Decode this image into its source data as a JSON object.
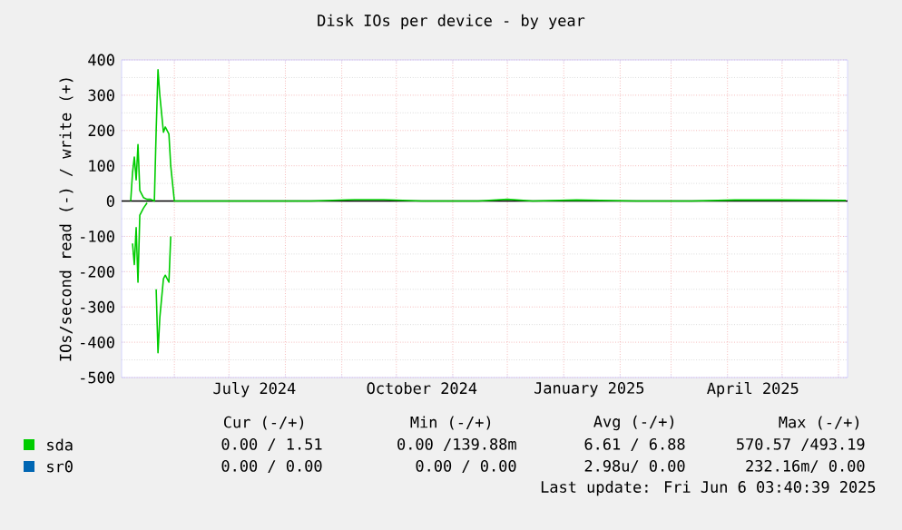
{
  "chart_data": {
    "type": "line",
    "title": "Disk IOs per device - by year",
    "ylabel": "IOs/second read (-) / write (+)",
    "x": [
      "2024-05-08",
      "2024-05-09",
      "2024-05-10",
      "2024-05-11",
      "2024-05-12",
      "2024-05-13",
      "2024-05-15",
      "2024-05-17",
      "2024-05-19",
      "2024-05-21",
      "2024-05-22",
      "2024-05-23",
      "2024-05-24",
      "2024-05-26",
      "2024-05-27",
      "2024-05-29",
      "2024-05-30",
      "2024-06-01",
      "2024-07-15",
      "2024-08-15",
      "2024-09-08",
      "2024-09-24",
      "2024-10-15",
      "2024-11-15",
      "2024-12-01",
      "2024-12-15",
      "2025-01-08",
      "2025-02-10",
      "2025-03-12",
      "2025-04-05",
      "2025-05-01",
      "2025-06-05"
    ],
    "series": [
      {
        "name": "sr0",
        "color": "#0066b3",
        "values": [
          null,
          null,
          null,
          null,
          null,
          null,
          null,
          null,
          null,
          null,
          null,
          null,
          null,
          null,
          null,
          null,
          null,
          null,
          null,
          null,
          null,
          null,
          null,
          null,
          null,
          null,
          null,
          null,
          null,
          null,
          null,
          null
        ]
      },
      {
        "color": "#00cc00",
        "values": [
          null,
          -120,
          -180,
          -75,
          -230,
          -40,
          -20,
          -5,
          null,
          null,
          -250,
          -430,
          -330,
          -220,
          -210,
          -230,
          -100,
          null,
          null,
          null,
          null,
          null,
          null,
          null,
          null,
          null,
          null,
          null,
          null,
          null,
          null,
          null
        ]
      },
      {
        "name": "sda",
        "color": "#00cc00",
        "values": [
          0,
          80,
          125,
          60,
          160,
          30,
          10,
          5,
          5,
          0,
          200,
          372,
          300,
          195,
          210,
          190,
          100,
          0,
          0,
          0,
          4,
          4,
          0,
          0,
          5,
          0,
          3,
          0,
          0,
          3,
          3,
          2
        ]
      }
    ],
    "xlim": [
      "2024-05-03",
      "2025-06-06"
    ],
    "xticks": [
      {
        "value": "2024-06-01",
        "label": null
      },
      {
        "value": "2024-07-01",
        "label": null
      },
      {
        "value": "2024-08-01",
        "label": null
      },
      {
        "value": "2024-09-01",
        "label": null
      },
      {
        "value": "2024-10-01",
        "label": null
      },
      {
        "value": "2024-11-01",
        "label": null
      },
      {
        "value": "2024-12-01",
        "label": null
      },
      {
        "value": "2025-01-01",
        "label": null
      },
      {
        "value": "2025-02-01",
        "label": null
      },
      {
        "value": "2025-03-01",
        "label": null
      },
      {
        "value": "2025-04-01",
        "label": null
      },
      {
        "value": "2025-05-01",
        "label": null
      },
      {
        "value": "2025-06-01",
        "label": null
      },
      {
        "value": "2024-07-15",
        "label": "July 2024"
      },
      {
        "value": "2024-10-15",
        "label": "October 2024"
      },
      {
        "value": "2025-01-15",
        "label": "January 2025"
      },
      {
        "value": "2025-04-15",
        "label": "April 2025"
      }
    ],
    "ylim": [
      -500,
      400
    ],
    "yticks": [
      -500,
      -400,
      -300,
      -200,
      -100,
      0,
      100,
      200,
      300,
      400
    ],
    "ref_lines": [
      {
        "axis": "y",
        "value": 0,
        "color": "#000000"
      }
    ],
    "grid": true,
    "legend": "bottom left",
    "annotations": [
      "Cur (-/+)",
      "Min (-/+)",
      "Avg (-/+)",
      "Max (-/+)",
      "0.00 / 1.51",
      "0.00 /139.88m",
      "6.61 / 6.88",
      "570.57 /493.19",
      "0.00 / 0.00",
      "0.00 / 0.00",
      "2.98u/ 0.00",
      "232.16m/ 0.00",
      "Last update: Fri Jun 6 03:40:39 2025"
    ]
  }
}
